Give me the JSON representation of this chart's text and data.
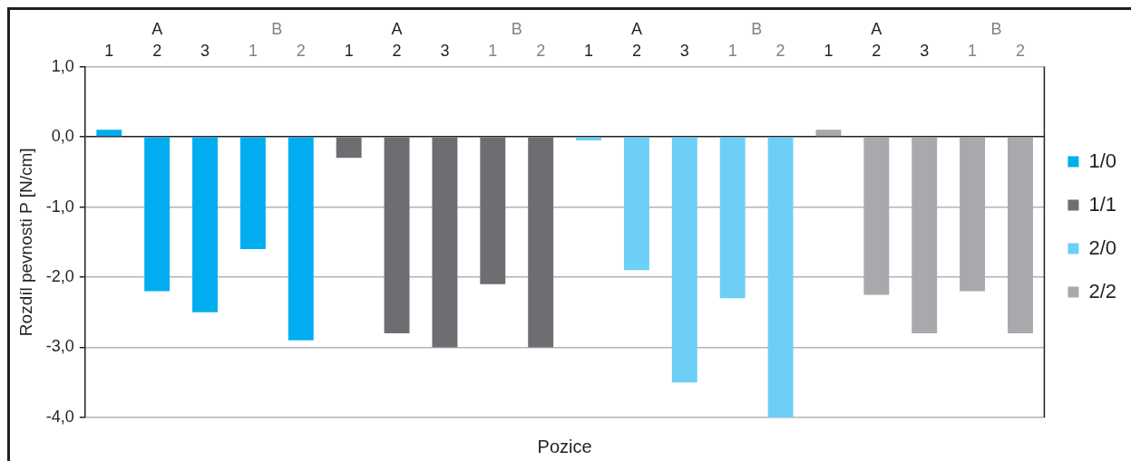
{
  "chart_data": {
    "type": "bar",
    "xlabel": "Pozice",
    "ylabel": "Rozdíl pevnosti P [N/cm]",
    "categories": [
      "1",
      "2",
      "3",
      "1",
      "2",
      "1",
      "2",
      "3",
      "1",
      "2",
      "1",
      "2",
      "3",
      "1",
      "2",
      "1",
      "2",
      "3",
      "1",
      "2"
    ],
    "annotations": [
      "A",
      "B",
      "A",
      "B",
      "A",
      "B",
      "A",
      "B"
    ],
    "series": [
      {
        "name": "1/0",
        "color": "#00aeef",
        "values": [
          0.1,
          -2.2,
          -2.5,
          -1.6,
          -2.9,
          null,
          null,
          null,
          null,
          null,
          null,
          null,
          null,
          null,
          null,
          null,
          null,
          null,
          null,
          null
        ]
      },
      {
        "name": "1/1",
        "color": "#6d6e71",
        "values": [
          null,
          null,
          null,
          null,
          null,
          -0.3,
          -2.8,
          -3.0,
          -2.1,
          -3.0,
          null,
          null,
          null,
          null,
          null,
          null,
          null,
          null,
          null,
          null
        ]
      },
      {
        "name": "2/0",
        "color": "#6dcff6",
        "values": [
          null,
          null,
          null,
          null,
          null,
          null,
          null,
          null,
          null,
          null,
          -0.05,
          -1.9,
          -3.5,
          -2.3,
          -4.0,
          null,
          null,
          null,
          null,
          null
        ]
      },
      {
        "name": "2/2",
        "color": "#a7a9ac",
        "values": [
          null,
          null,
          null,
          null,
          null,
          null,
          null,
          null,
          null,
          null,
          null,
          null,
          null,
          null,
          null,
          0.1,
          -2.25,
          -2.8,
          -2.2,
          -2.8
        ]
      }
    ],
    "ylim": [
      -4,
      1
    ],
    "yticks": [
      {
        "value": 1,
        "label": "1,0"
      },
      {
        "value": 0,
        "label": "0,0"
      },
      {
        "value": -1,
        "label": "-1,0"
      },
      {
        "value": -2,
        "label": "-2,0"
      },
      {
        "value": -3,
        "label": "-3,0"
      },
      {
        "value": -4,
        "label": "-4,0"
      }
    ],
    "grid": "y",
    "legend": "right"
  }
}
